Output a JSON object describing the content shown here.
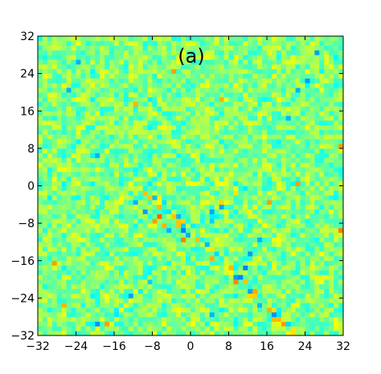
{
  "chart_data": {
    "type": "heatmap",
    "panel_label": "(a)",
    "title": "",
    "xlabel": "",
    "ylabel": "",
    "xlim": [
      -32,
      32
    ],
    "ylim": [
      -32,
      32
    ],
    "grid": false,
    "xticks": [
      -32,
      -24,
      -16,
      -8,
      0,
      8,
      16,
      24,
      32
    ],
    "yticks": [
      -32,
      -24,
      -16,
      -8,
      0,
      8,
      16,
      24,
      32
    ],
    "xtick_labels": [
      "−32",
      "−24",
      "−16",
      "−8",
      "0",
      "8",
      "16",
      "24",
      "32"
    ],
    "ytick_labels": [
      "−32",
      "−24",
      "−16",
      "−8",
      "0",
      "8",
      "16",
      "24",
      "32"
    ],
    "colormap": "jet",
    "grid_cells": 64,
    "background_color": "#7ee88f",
    "description_of_structure": "",
    "emphasized_cells": [
      {
        "x": -8,
        "y": -8,
        "level": 0.72
      },
      {
        "x": -7,
        "y": -7,
        "level": 0.78
      },
      {
        "x": -6,
        "y": -9,
        "level": 0.7
      },
      {
        "x": -2,
        "y": -12,
        "level": 0.75
      },
      {
        "x": -2,
        "y": -10,
        "level": 0.25
      },
      {
        "x": -5,
        "y": -10,
        "level": 0.3
      },
      {
        "x": -10,
        "y": -6,
        "level": 0.28
      },
      {
        "x": -12,
        "y": -4,
        "level": 0.3
      },
      {
        "x": 10,
        "y": -20,
        "level": 0.25
      },
      {
        "x": 11,
        "y": -18,
        "level": 0.25
      },
      {
        "x": 12,
        "y": -15,
        "level": 0.28
      },
      {
        "x": 14,
        "y": -12,
        "level": 0.3
      },
      {
        "x": 22,
        "y": 20,
        "level": 0.3
      },
      {
        "x": 24,
        "y": 22,
        "level": 0.28
      },
      {
        "x": 26,
        "y": 28,
        "level": 0.28
      },
      {
        "x": 31,
        "y": -10,
        "level": 0.75
      },
      {
        "x": 31,
        "y": 8,
        "level": 0.72
      },
      {
        "x": 22,
        "y": 0,
        "level": 0.72
      },
      {
        "x": -29,
        "y": -17,
        "level": 0.72
      },
      {
        "x": -27,
        "y": -26,
        "level": 0.7
      },
      {
        "x": -12,
        "y": 17,
        "level": 0.7
      },
      {
        "x": -4,
        "y": 24,
        "level": 0.72
      },
      {
        "x": -20,
        "y": 6,
        "level": 0.3
      },
      {
        "x": -24,
        "y": 26,
        "level": 0.3
      },
      {
        "x": 4,
        "y": -28,
        "level": 0.3
      },
      {
        "x": -18,
        "y": -30,
        "level": 0.72
      },
      {
        "x": -26,
        "y": 20,
        "level": 0.3
      },
      {
        "x": 20,
        "y": 14,
        "level": 0.3
      },
      {
        "x": 6,
        "y": 18,
        "level": 0.7
      },
      {
        "x": 16,
        "y": -4,
        "level": 0.72
      }
    ]
  }
}
